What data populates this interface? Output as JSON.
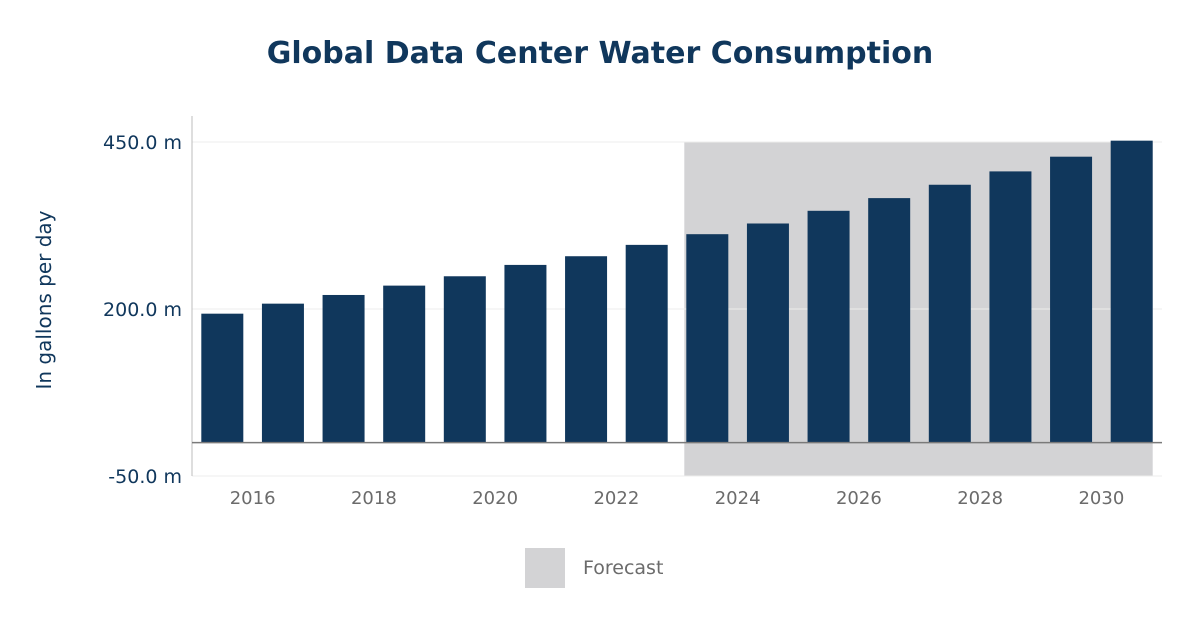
{
  "chart_data": {
    "type": "bar",
    "title": "Global Data Center Water Consumption",
    "ylabel": "In gallons per day",
    "xlabel": "",
    "categories": [
      "2015",
      "2016",
      "2017",
      "2018",
      "2019",
      "2020",
      "2021",
      "2022",
      "2023",
      "2024",
      "2025",
      "2026",
      "2027",
      "2028",
      "2029",
      "2030"
    ],
    "x_tick_labels": [
      "2016",
      "2018",
      "2020",
      "2022",
      "2024",
      "2026",
      "2028",
      "2030"
    ],
    "values": [
      193,
      208,
      221,
      235,
      249,
      266,
      279,
      296,
      312,
      328,
      347,
      366,
      386,
      406,
      428,
      452
    ],
    "value_unit": "m",
    "ylim": [
      -50,
      450
    ],
    "yticks": [
      -50,
      200,
      450
    ],
    "y_tick_labels": [
      "-50.0 m",
      "200.0 m",
      "450.0 m"
    ],
    "forecast": {
      "start": "2023",
      "end": "2030",
      "label": "Forecast"
    },
    "grid": true,
    "legend": {
      "position": "bottom-center",
      "entries": [
        "Forecast"
      ]
    },
    "colors": {
      "bar": "#10375c",
      "forecast_band": "#d3d3d5",
      "title": "#10375c"
    }
  }
}
